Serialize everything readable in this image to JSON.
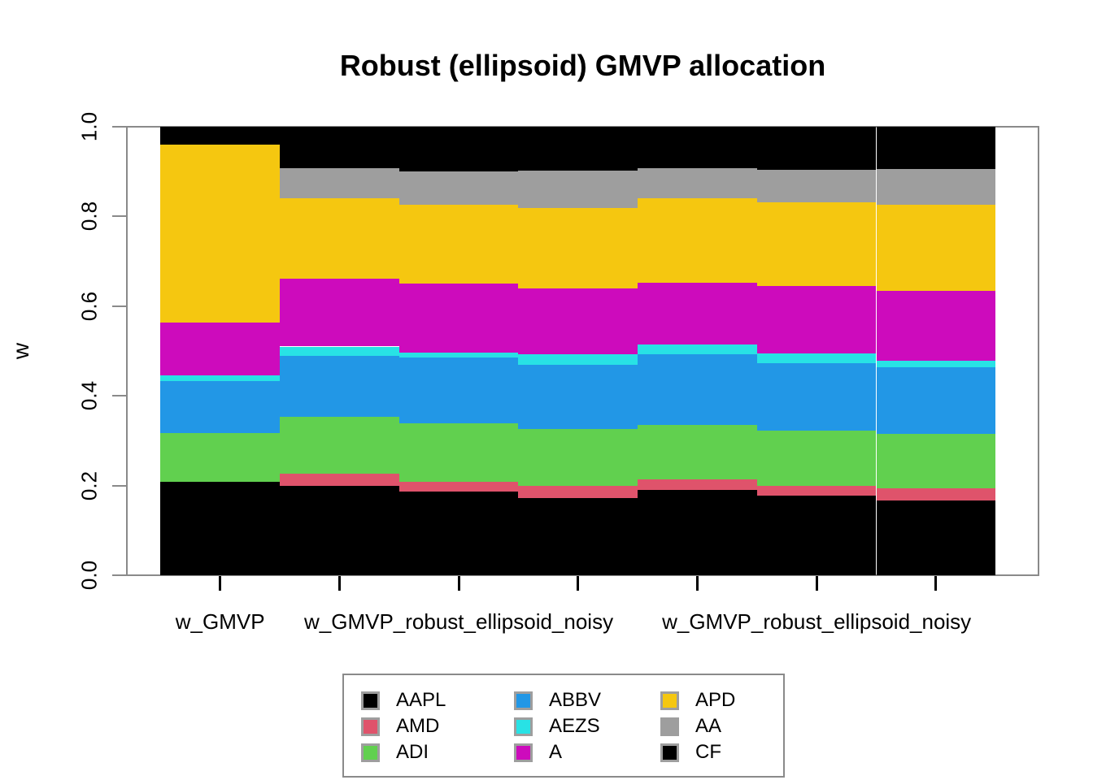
{
  "title": "Robust (ellipsoid) GMVP allocation",
  "y_axis": {
    "label": "w",
    "tick_labels": [
      "1.0",
      "0.8",
      "0.6",
      "0.4",
      "0.2",
      "0.0"
    ],
    "tick_values": [
      1.0,
      0.8,
      0.6,
      0.4,
      0.2,
      0.0
    ]
  },
  "x_axis": {
    "shown_labels": [
      {
        "bar_index": 0,
        "text": "w_GMVP"
      },
      {
        "bar_index": 2,
        "text": "w_GMVP_robust_ellipsoid_noisy"
      },
      {
        "bar_index": 5,
        "text": "w_GMVP_robust_ellipsoid_noisy"
      }
    ]
  },
  "legend": {
    "columns": [
      [
        {
          "label": "AAPL",
          "color": "#000000"
        },
        {
          "label": "AMD",
          "color": "#DF536B"
        },
        {
          "label": "ADI",
          "color": "#61D04F"
        }
      ],
      [
        {
          "label": "ABBV",
          "color": "#2297E6"
        },
        {
          "label": "AEZS",
          "color": "#28E2E5"
        },
        {
          "label": "A",
          "color": "#CD0BBC"
        }
      ],
      [
        {
          "label": "APD",
          "color": "#F5C710"
        },
        {
          "label": "AA",
          "color": "#9E9E9E"
        },
        {
          "label": "CF",
          "color": "#000000"
        }
      ]
    ]
  },
  "chart_data": {
    "type": "bar",
    "stacked": true,
    "title": "Robust (ellipsoid) GMVP allocation",
    "ylabel": "w",
    "ylim": [
      0,
      1
    ],
    "y_ticks": [
      0,
      0.2,
      0.4,
      0.6,
      0.8,
      1.0
    ],
    "grid": false,
    "legend_position": "bottom",
    "n_bars": 7,
    "categories": [
      "w_GMVP",
      "w_GMVP_robust_ellipsoid_noisy",
      "w_GMVP_robust_ellipsoid_noisy",
      "w_GMVP_robust_ellipsoid_noisy",
      "w_GMVP_robust_ellipsoid_noisy",
      "w_GMVP_robust_ellipsoid_noisy",
      "w_GMVP_robust_ellipsoid_noisy"
    ],
    "series": [
      {
        "name": "AAPL",
        "color": "#000000",
        "values": [
          0.208,
          0.199,
          0.187,
          0.172,
          0.19,
          0.178,
          0.167
        ]
      },
      {
        "name": "AMD",
        "color": "#DF536B",
        "values": [
          0.0,
          0.027,
          0.022,
          0.027,
          0.024,
          0.022,
          0.026
        ]
      },
      {
        "name": "ADI",
        "color": "#61D04F",
        "values": [
          0.109,
          0.127,
          0.129,
          0.127,
          0.122,
          0.123,
          0.122
        ]
      },
      {
        "name": "ABBV",
        "color": "#2297E6",
        "values": [
          0.116,
          0.136,
          0.147,
          0.143,
          0.157,
          0.149,
          0.149
        ]
      },
      {
        "name": "AEZS",
        "color": "#28E2E5",
        "values": [
          0.013,
          0.021,
          0.012,
          0.024,
          0.022,
          0.023,
          0.015
        ]
      },
      {
        "name": "A",
        "color": "#CD0BBC",
        "values": [
          0.117,
          0.151,
          0.153,
          0.147,
          0.138,
          0.15,
          0.155
        ]
      },
      {
        "name": "APD",
        "color": "#F5C710",
        "values": [
          0.398,
          0.179,
          0.177,
          0.179,
          0.187,
          0.187,
          0.193
        ]
      },
      {
        "name": "AA",
        "color": "#9E9E9E",
        "values": [
          0.0,
          0.068,
          0.073,
          0.083,
          0.068,
          0.072,
          0.078
        ]
      },
      {
        "name": "CF",
        "color": "#000000",
        "values": [
          0.039,
          0.092,
          0.1,
          0.098,
          0.092,
          0.096,
          0.095
        ]
      }
    ]
  }
}
